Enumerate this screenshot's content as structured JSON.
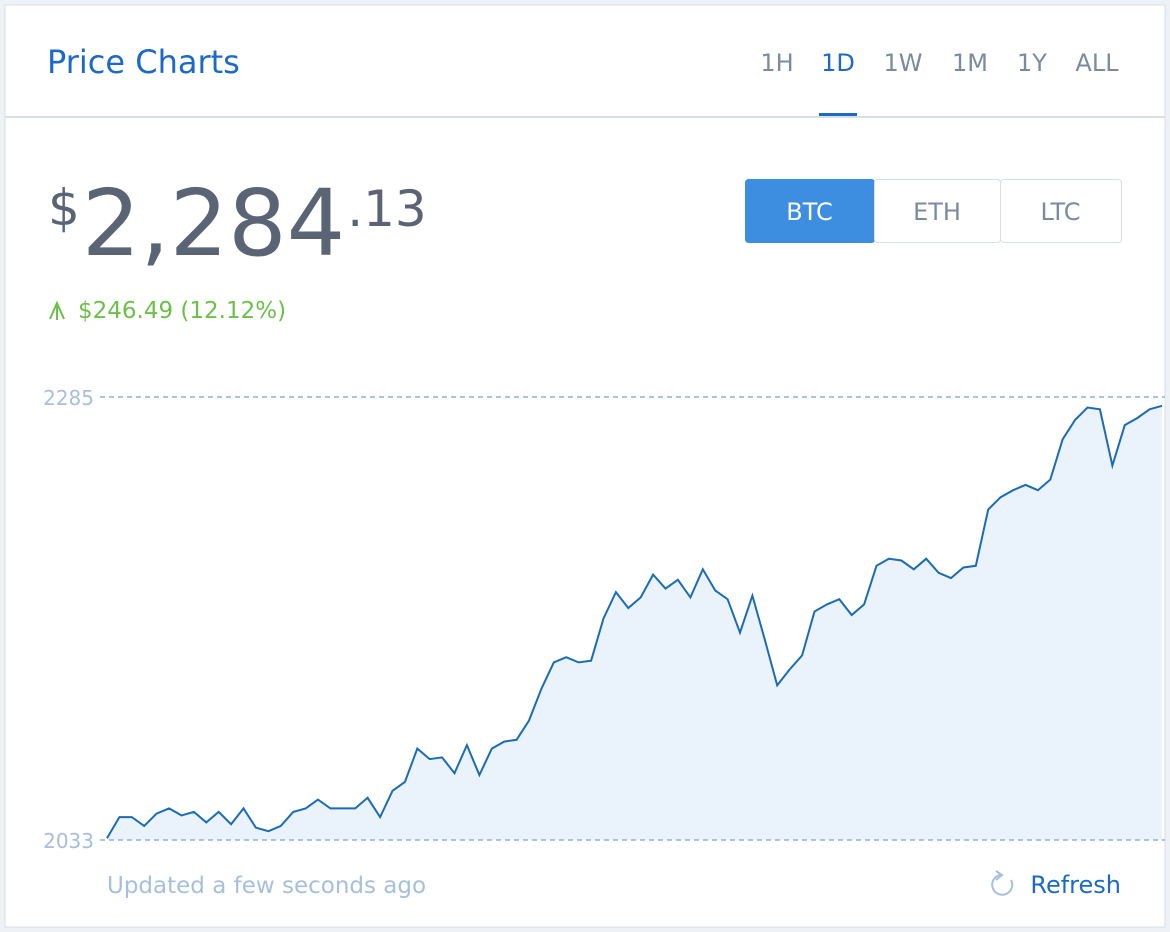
{
  "header": {
    "title": "Price Charts",
    "tabs": [
      "1H",
      "1D",
      "1W",
      "1M",
      "1Y",
      "ALL"
    ],
    "active_tab": "1D"
  },
  "price": {
    "currency": "$",
    "whole": "2,284",
    "cents": ".13"
  },
  "change": {
    "text": "$246.49 (12.12%)"
  },
  "currency_tabs": [
    "BTC",
    "ETH",
    "LTC"
  ],
  "active_currency": "BTC",
  "chart_data": {
    "type": "line",
    "color": "#1c6bb5",
    "fill": "#eaf2fb",
    "ylim": [
      2033,
      2285
    ],
    "yticks": [
      2033,
      2285
    ],
    "values": [
      2034,
      2046,
      2046,
      2041,
      2048,
      2051,
      2047,
      2049,
      2043,
      2049,
      2042,
      2051,
      2040,
      2038,
      2041,
      2049,
      2051,
      2056,
      2051,
      2051,
      2051,
      2057,
      2046,
      2061,
      2066,
      2085,
      2079,
      2080,
      2071,
      2087,
      2070,
      2085,
      2089,
      2090,
      2101,
      2119,
      2134,
      2137,
      2134,
      2135,
      2159,
      2174,
      2165,
      2171,
      2184,
      2176,
      2181,
      2171,
      2187,
      2175,
      2170,
      2151,
      2172,
      2147,
      2121,
      2130,
      2138,
      2163,
      2167,
      2170,
      2161,
      2167,
      2189,
      2193,
      2192,
      2187,
      2193,
      2185,
      2182,
      2188,
      2189,
      2221,
      2228,
      2232,
      2235,
      2232,
      2238,
      2261,
      2272,
      2279,
      2278,
      2246,
      2269,
      2273,
      2278,
      2280
    ]
  },
  "footer": {
    "status": "Updated a few seconds ago",
    "refresh": "Refresh"
  }
}
